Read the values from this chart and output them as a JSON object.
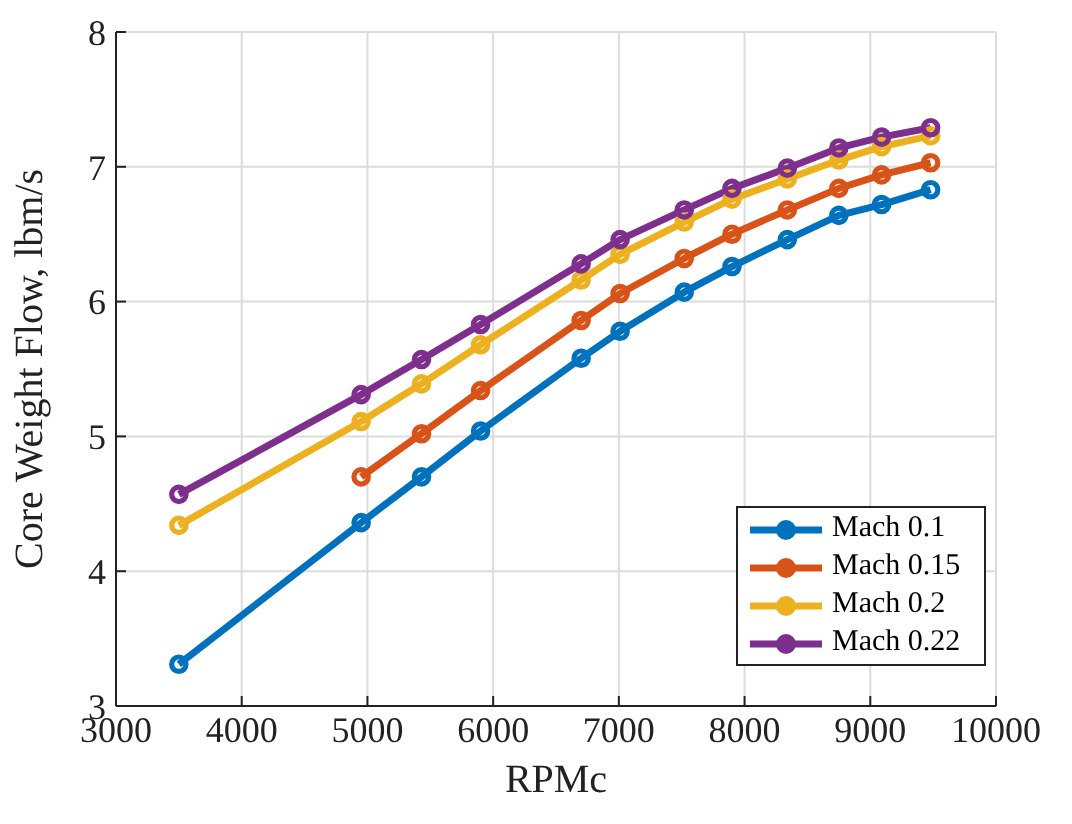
{
  "chart_data": {
    "type": "line",
    "xlabel": "RPMc",
    "ylabel": "Core Weight Flow, lbm/s",
    "x": [
      3500,
      4950,
      5430,
      5900,
      6700,
      7010,
      7520,
      7900,
      8340,
      8750,
      9090,
      9480
    ],
    "series": [
      {
        "name": "Mach 0.1",
        "color": "#0072bd",
        "values": [
          3.31,
          4.36,
          4.7,
          5.04,
          5.58,
          5.78,
          6.07,
          6.26,
          6.46,
          6.64,
          6.72,
          6.83
        ]
      },
      {
        "name": "Mach 0.15",
        "color": "#d95319",
        "values": [
          null,
          4.7,
          5.02,
          5.34,
          5.86,
          6.06,
          6.32,
          6.5,
          6.68,
          6.84,
          6.94,
          7.03
        ]
      },
      {
        "name": "Mach 0.2",
        "color": "#edb120",
        "values": [
          4.34,
          5.11,
          5.39,
          5.68,
          6.16,
          6.35,
          6.59,
          6.76,
          6.91,
          7.05,
          7.15,
          7.23
        ]
      },
      {
        "name": "Mach 0.22",
        "color": "#7e2f8e",
        "values": [
          4.57,
          5.31,
          5.57,
          5.83,
          6.28,
          6.46,
          6.68,
          6.84,
          6.99,
          7.14,
          7.22,
          7.29
        ]
      }
    ],
    "xlim": [
      3000,
      10000
    ],
    "xticks": [
      3000,
      4000,
      5000,
      6000,
      7000,
      8000,
      9000,
      10000
    ],
    "ylim": [
      3,
      8
    ],
    "yticks": [
      3,
      4,
      5,
      6,
      7,
      8
    ],
    "grid": true,
    "legend": "bottom right",
    "marker": "circle",
    "line_style": "solid"
  }
}
